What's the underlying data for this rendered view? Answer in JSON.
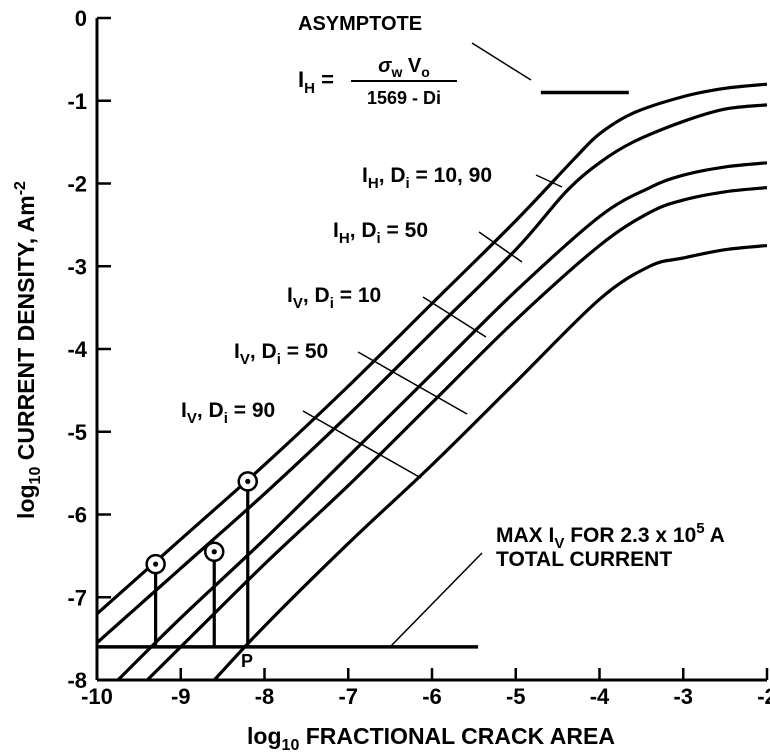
{
  "chart_data": {
    "type": "line",
    "xlabel": {
      "prefix": "log",
      "sub": "10",
      "rest": " FRACTIONAL CRACK AREA"
    },
    "ylabel": {
      "prefix": "log",
      "sub": "10",
      "rest": " CURRENT DENSITY, Am",
      "sup": "-2"
    },
    "xlim": [
      -10,
      -2
    ],
    "ylim": [
      -8,
      0
    ],
    "x_ticks": [
      -10,
      -9,
      -8,
      -7,
      -6,
      -5,
      -4,
      -3,
      -2
    ],
    "x_tick_labels": [
      "-10",
      "-9",
      "-8",
      "-7",
      "-6",
      "-5",
      "-4",
      "-3",
      "-2"
    ],
    "y_ticks": [
      0,
      -1,
      -2,
      -3,
      -4,
      -5,
      -6,
      -7,
      -8
    ],
    "y_tick_labels": [
      "0",
      "-1",
      "-2",
      "-3",
      "-4",
      "-5",
      "-6",
      "-7",
      "-8"
    ],
    "grid": false,
    "series": [
      {
        "name": "IH, Di = 10, 90",
        "x": [
          -10,
          -9,
          -8,
          -7,
          -6,
          -5,
          -4.3,
          -4,
          -3.6,
          -3,
          -2.5,
          -2
        ],
        "y": [
          -7.2,
          -6.3,
          -5.4,
          -4.45,
          -3.45,
          -2.45,
          -1.7,
          -1.4,
          -1.15,
          -0.95,
          -0.85,
          -0.8
        ]
      },
      {
        "name": "IH, Di = 50",
        "x": [
          -10,
          -9,
          -8,
          -7,
          -6,
          -5,
          -4.4,
          -4,
          -3.6,
          -3,
          -2.5,
          -2
        ],
        "y": [
          -7.55,
          -6.65,
          -5.75,
          -4.8,
          -3.8,
          -2.8,
          -2.1,
          -1.75,
          -1.5,
          -1.25,
          -1.1,
          -1.05
        ]
      },
      {
        "name": "IV, Di = 10",
        "x": [
          -9.75,
          -9,
          -8,
          -7,
          -6,
          -5,
          -4,
          -3.4,
          -3,
          -2.5,
          -2
        ],
        "y": [
          -8,
          -7.25,
          -6.3,
          -5.3,
          -4.3,
          -3.3,
          -2.4,
          -2.05,
          -1.9,
          -1.8,
          -1.75
        ]
      },
      {
        "name": "IV, Di = 50",
        "x": [
          -9.4,
          -9,
          -8,
          -7,
          -6,
          -5,
          -4,
          -3.4,
          -3,
          -2.5,
          -2
        ],
        "y": [
          -8,
          -7.6,
          -6.6,
          -5.65,
          -4.65,
          -3.65,
          -2.75,
          -2.35,
          -2.2,
          -2.1,
          -2.05
        ]
      },
      {
        "name": "IV, Di = 90",
        "x": [
          -8.6,
          -8,
          -7,
          -6,
          -5,
          -4,
          -3.4,
          -3,
          -2.5,
          -2
        ],
        "y": [
          -8,
          -7.35,
          -6.35,
          -5.4,
          -4.4,
          -3.4,
          -3.0,
          -2.9,
          -2.8,
          -2.75
        ]
      }
    ],
    "asymptote": {
      "x": [
        -4.7,
        -3.65
      ],
      "y": [
        -0.9,
        -0.9
      ]
    },
    "max_line": {
      "x": [
        -10,
        -5.45
      ],
      "y": [
        -7.6,
        -7.6
      ]
    },
    "stems": [
      {
        "x": -9.3,
        "y_top": -6.6,
        "y_bottom": -7.6
      },
      {
        "x": -8.6,
        "y_top": -6.45,
        "y_bottom": -7.6
      },
      {
        "x": -8.2,
        "y_top": -5.6,
        "y_bottom": -7.6
      }
    ],
    "annotations": {
      "asymptote_title": "ASYMPTOTE",
      "asymptote_formula": {
        "lhs": "I",
        "lhs_sub": "H",
        "eq": " = ",
        "numerator_sigma": "σ",
        "numerator_sigma_sub": "w",
        "numerator_v": " V",
        "numerator_v_sub": "o",
        "denominator": "1569 - Di"
      },
      "curve_labels": [
        {
          "I_sub": "H",
          "text": "10, 90"
        },
        {
          "I_sub": "H",
          "text": "50"
        },
        {
          "I_sub": "V",
          "text": "10"
        },
        {
          "I_sub": "V",
          "text": "50"
        },
        {
          "I_sub": "V",
          "text": "90"
        }
      ],
      "max_label_line1_pre": "MAX I",
      "max_label_line1_sub": "V",
      "max_label_line1_post": " FOR 2.3 x 10",
      "max_label_line1_sup": "5",
      "max_label_line1_end": " A",
      "max_label_line2": "TOTAL CURRENT",
      "point_label": "P"
    }
  }
}
